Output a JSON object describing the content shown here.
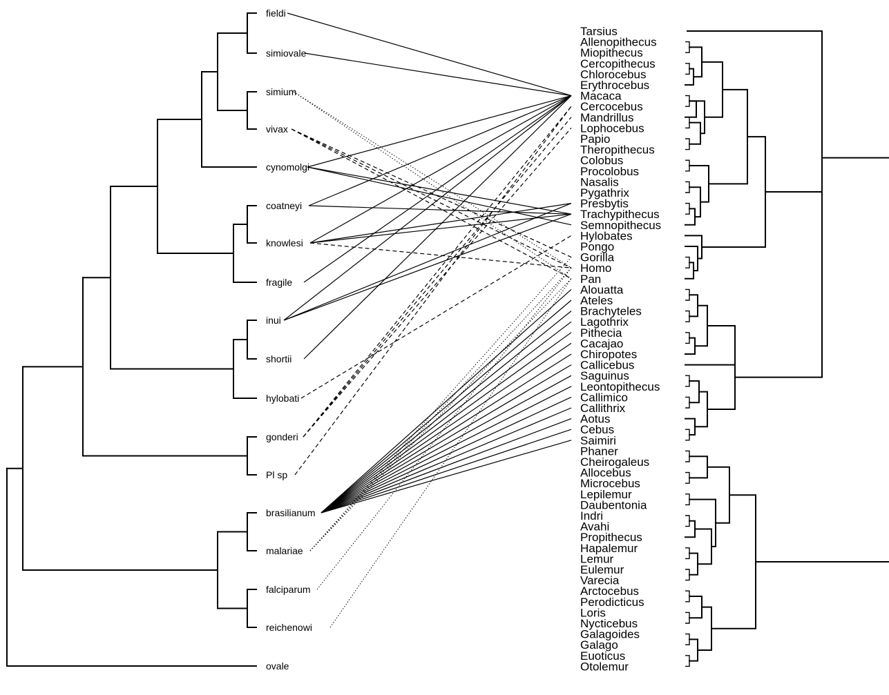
{
  "parasites": [
    {
      "name": "fieldi"
    },
    {
      "name": "simiovale"
    },
    {
      "name": "simium"
    },
    {
      "name": "vivax"
    },
    {
      "name": "cynomolgi"
    },
    {
      "name": "coatneyi"
    },
    {
      "name": "knowlesi"
    },
    {
      "name": "fragile"
    },
    {
      "name": "inui"
    },
    {
      "name": "shortii"
    },
    {
      "name": "hylobati"
    },
    {
      "name": "gonderi"
    },
    {
      "name": "Pl sp"
    },
    {
      "name": "brasilianum"
    },
    {
      "name": "malariae"
    },
    {
      "name": "falciparum"
    },
    {
      "name": "reichenowi"
    },
    {
      "name": "ovale"
    }
  ],
  "hosts": [
    "Tarsius",
    "Allenopithecus",
    "Miopithecus",
    "Cercopithecus",
    "Chlorocebus",
    "Erythrocebus",
    "Macaca",
    "Cercocebus",
    "Mandrillus",
    "Lophocebus",
    "Papio",
    "Theropithecus",
    "Colobus",
    "Procolobus",
    "Nasalis",
    "Pygathrix",
    "Presbytis",
    "Trachypithecus",
    "Semnopithecus",
    "Hylobates",
    "Pongo",
    "Gorilla",
    "Homo",
    "Pan",
    "Alouatta",
    "Ateles",
    "Brachyteles",
    "Lagothrix",
    "Pithecia",
    "Cacajao",
    "Chiropotes",
    "Callicebus",
    "Saguinus",
    "Leontopithecus",
    "Callimico",
    "Callithrix",
    "Aotus",
    "Cebus",
    "Saimiri",
    "Phaner",
    "Cheirogaleus",
    "Allocebus",
    "Microcebus",
    "Lepilemur",
    "Daubentonia",
    "Indri",
    "Avahi",
    "Propithecus",
    "Hapalemur",
    "Lemur",
    "Eulemur",
    "Varecia",
    "Arctocebus",
    "Perodicticus",
    "Loris",
    "Nycticebus",
    "Galagoides",
    "Galago",
    "Euoticus",
    "Otolemur"
  ],
  "links": [
    {
      "parasite": "fieldi",
      "host": "Macaca",
      "style": "solid"
    },
    {
      "parasite": "simiovale",
      "host": "Macaca",
      "style": "solid"
    },
    {
      "parasite": "cynomolgi",
      "host": "Macaca",
      "style": "solid"
    },
    {
      "parasite": "cynomolgi",
      "host": "Trachypithecus",
      "style": "solid"
    },
    {
      "parasite": "cynomolgi",
      "host": "Semnopithecus",
      "style": "solid"
    },
    {
      "parasite": "coatneyi",
      "host": "Macaca",
      "style": "solid"
    },
    {
      "parasite": "coatneyi",
      "host": "Trachypithecus",
      "style": "solid"
    },
    {
      "parasite": "knowlesi",
      "host": "Macaca",
      "style": "solid"
    },
    {
      "parasite": "knowlesi",
      "host": "Presbytis",
      "style": "solid"
    },
    {
      "parasite": "knowlesi",
      "host": "Trachypithecus",
      "style": "solid"
    },
    {
      "parasite": "fragile",
      "host": "Macaca",
      "style": "solid"
    },
    {
      "parasite": "inui",
      "host": "Macaca",
      "style": "solid"
    },
    {
      "parasite": "inui",
      "host": "Presbytis",
      "style": "solid"
    },
    {
      "parasite": "inui",
      "host": "Trachypithecus",
      "style": "solid"
    },
    {
      "parasite": "shortii",
      "host": "Macaca",
      "style": "solid"
    },
    {
      "parasite": "vivax",
      "host": "Gorilla",
      "style": "dashed"
    },
    {
      "parasite": "vivax",
      "host": "Homo",
      "style": "dashed"
    },
    {
      "parasite": "vivax",
      "host": "Pan",
      "style": "dashed"
    },
    {
      "parasite": "knowlesi",
      "host": "Homo",
      "style": "dashed"
    },
    {
      "parasite": "hylobati",
      "host": "Hylobates",
      "style": "dashed"
    },
    {
      "parasite": "gonderi",
      "host": "Cercocebus",
      "style": "dashed"
    },
    {
      "parasite": "gonderi",
      "host": "Mandrillus",
      "style": "dashed"
    },
    {
      "parasite": "gonderi",
      "host": "Lophocebus",
      "style": "dashed"
    },
    {
      "parasite": "Pl sp",
      "host": "Cercocebus",
      "style": "dashed"
    },
    {
      "parasite": "simium",
      "host": "Homo",
      "style": "dotted"
    },
    {
      "parasite": "simium",
      "host": "Pan",
      "style": "dotted"
    },
    {
      "parasite": "malariae",
      "host": "Gorilla",
      "style": "dotted"
    },
    {
      "parasite": "malariae",
      "host": "Homo",
      "style": "dotted"
    },
    {
      "parasite": "malariae",
      "host": "Pan",
      "style": "dotted"
    },
    {
      "parasite": "falciparum",
      "host": "Homo",
      "style": "dotted"
    },
    {
      "parasite": "reichenowi",
      "host": "Pan",
      "style": "dotted"
    },
    {
      "parasite": "brasilianum",
      "host": "Alouatta",
      "style": "solid"
    },
    {
      "parasite": "brasilianum",
      "host": "Ateles",
      "style": "solid"
    },
    {
      "parasite": "brasilianum",
      "host": "Brachyteles",
      "style": "solid"
    },
    {
      "parasite": "brasilianum",
      "host": "Lagothrix",
      "style": "solid"
    },
    {
      "parasite": "brasilianum",
      "host": "Pithecia",
      "style": "solid"
    },
    {
      "parasite": "brasilianum",
      "host": "Cacajao",
      "style": "solid"
    },
    {
      "parasite": "brasilianum",
      "host": "Chiropotes",
      "style": "solid"
    },
    {
      "parasite": "brasilianum",
      "host": "Callicebus",
      "style": "solid"
    },
    {
      "parasite": "brasilianum",
      "host": "Saguinus",
      "style": "solid"
    },
    {
      "parasite": "brasilianum",
      "host": "Leontopithecus",
      "style": "solid"
    },
    {
      "parasite": "brasilianum",
      "host": "Callimico",
      "style": "solid"
    },
    {
      "parasite": "brasilianum",
      "host": "Callithrix",
      "style": "solid"
    },
    {
      "parasite": "brasilianum",
      "host": "Aotus",
      "style": "solid"
    },
    {
      "parasite": "brasilianum",
      "host": "Cebus",
      "style": "solid"
    },
    {
      "parasite": "brasilianum",
      "host": "Saimiri",
      "style": "solid"
    }
  ]
}
